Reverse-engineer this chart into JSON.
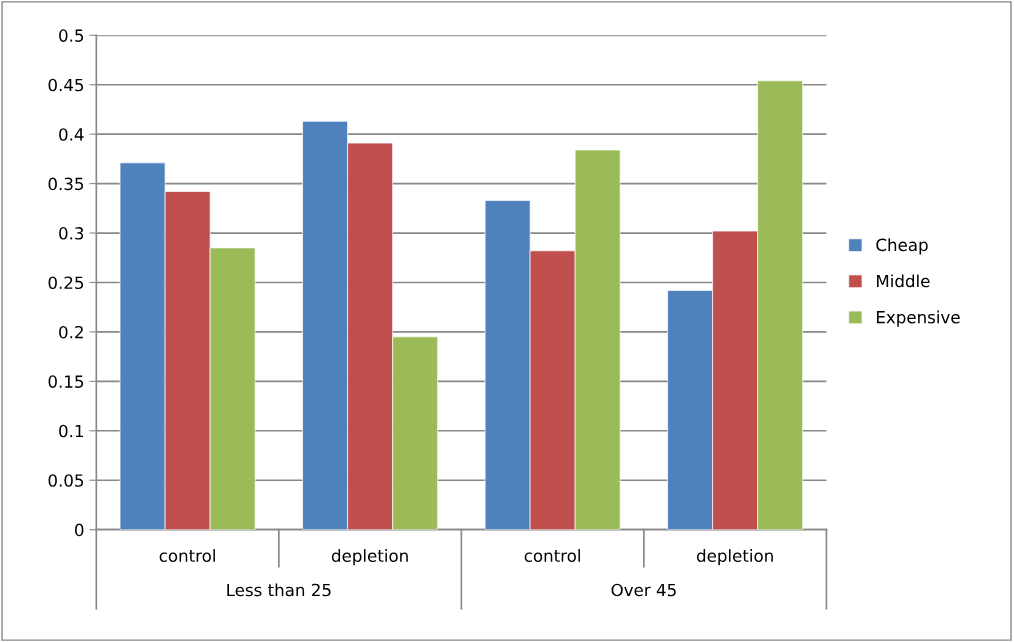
{
  "chart_data": {
    "type": "bar",
    "categories": [
      "control",
      "depletion",
      "control",
      "depletion"
    ],
    "annotations": [
      "Less than 25",
      "Over 45"
    ],
    "series": [
      {
        "name": "Cheap",
        "color": "#4f81bd",
        "values": [
          0.371,
          0.413,
          0.333,
          0.242
        ]
      },
      {
        "name": "Middle",
        "color": "#c0504d",
        "values": [
          0.342,
          0.391,
          0.282,
          0.302
        ]
      },
      {
        "name": "Expensive",
        "color": "#9bbb59",
        "values": [
          0.285,
          0.195,
          0.384,
          0.454
        ]
      }
    ],
    "ylim": [
      0,
      0.5
    ],
    "yticks": [
      0,
      0.05,
      0.1,
      0.15,
      0.2,
      0.25,
      0.3,
      0.35,
      0.4,
      0.45,
      0.5
    ],
    "grid": "y",
    "legend": "right"
  }
}
